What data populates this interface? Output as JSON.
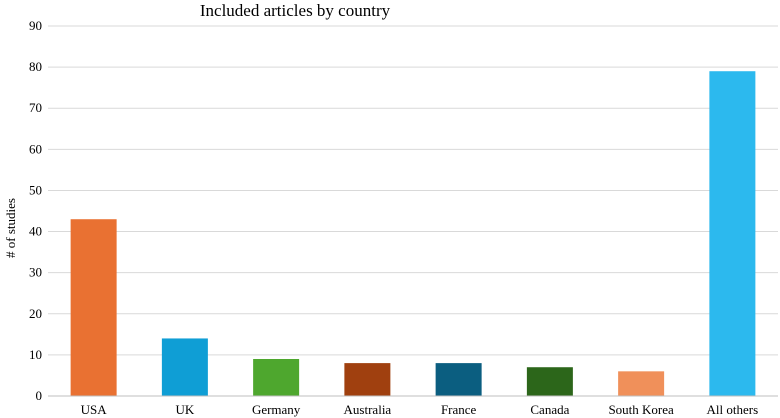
{
  "chart_data": {
    "type": "bar",
    "title": "Included articles by country",
    "xlabel": "",
    "ylabel": "# of studies",
    "categories": [
      "USA",
      "UK",
      "Germany",
      "Australia",
      "France",
      "Canada",
      "South Korea",
      "All others"
    ],
    "values": [
      43,
      14,
      9,
      8,
      8,
      7,
      6,
      79
    ],
    "colors": [
      "#E97132",
      "#0F9ED5",
      "#4EA72E",
      "#A0400F",
      "#0B5E80",
      "#2C661A",
      "#F0905A",
      "#2CB9EE"
    ],
    "ylim": [
      0,
      90
    ],
    "yticks": [
      0,
      10,
      20,
      30,
      40,
      50,
      60,
      70,
      80,
      90
    ],
    "grid": true,
    "legend": "none",
    "gridline_color": "#D9D9D9",
    "axis_color": "#BFBFBF"
  }
}
